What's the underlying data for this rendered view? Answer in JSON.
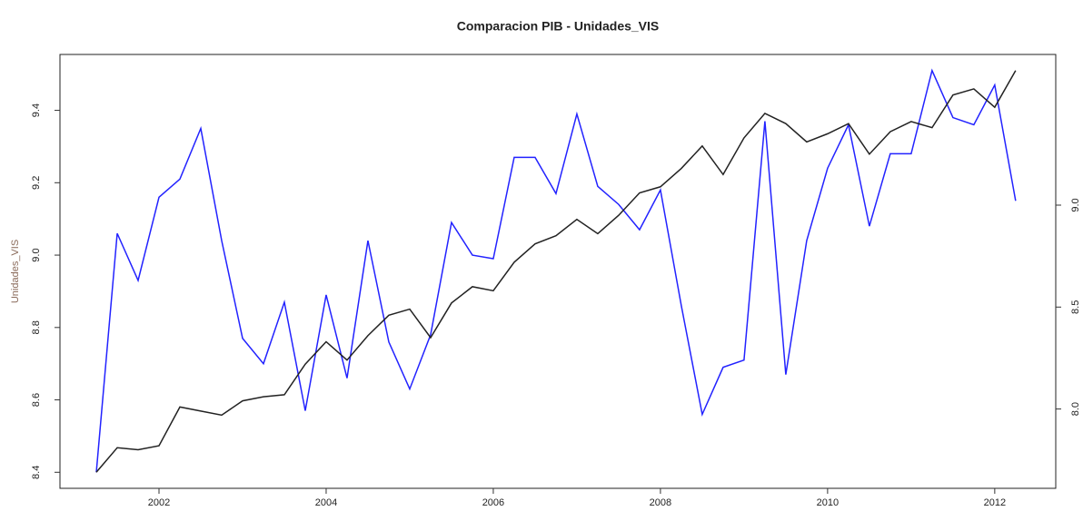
{
  "chart_data": {
    "type": "line",
    "title": "Comparacion PIB - Unidades_VIS",
    "ylabel": "Unidades_VIS",
    "x": [
      2001.25,
      2001.5,
      2001.75,
      2002,
      2002.25,
      2002.5,
      2002.75,
      2003,
      2003.25,
      2003.5,
      2003.75,
      2004,
      2004.25,
      2004.5,
      2004.75,
      2005,
      2005.25,
      2005.5,
      2005.75,
      2006,
      2006.25,
      2006.5,
      2006.75,
      2007,
      2007.25,
      2007.5,
      2007.75,
      2008,
      2008.25,
      2008.5,
      2008.75,
      2009,
      2009.25,
      2009.5,
      2009.75,
      2010,
      2010.25,
      2010.5,
      2010.75,
      2011,
      2011.25,
      2011.5,
      2011.75,
      2012,
      2012.25
    ],
    "series": [
      {
        "color": "#2222ff",
        "values": [
          8.4,
          9.06,
          8.93,
          9.16,
          9.21,
          9.35,
          9.04,
          8.77,
          8.7,
          8.87,
          8.57,
          8.89,
          8.66,
          9.04,
          8.76,
          8.63,
          8.78,
          9.09,
          9.0,
          8.99,
          9.27,
          9.27,
          9.17,
          9.39,
          9.19,
          9.14,
          9.07,
          9.18,
          8.86,
          8.56,
          8.69,
          8.71,
          9.37,
          8.67,
          9.04,
          9.24,
          9.36,
          9.08,
          9.28,
          9.28,
          9.51,
          9.38,
          9.36,
          9.47,
          9.15
        ]
      },
      {
        "color": "#222222",
        "axis": "y2",
        "values": [
          7.69,
          7.81,
          7.8,
          7.82,
          8.01,
          7.99,
          7.97,
          8.04,
          8.06,
          8.07,
          8.22,
          8.33,
          8.24,
          8.36,
          8.46,
          8.49,
          8.35,
          8.52,
          8.6,
          8.58,
          8.72,
          8.81,
          8.85,
          8.93,
          8.86,
          8.95,
          9.06,
          9.09,
          9.18,
          9.29,
          9.15,
          9.33,
          9.45,
          9.4,
          9.31,
          9.35,
          9.4,
          9.25,
          9.36,
          9.41,
          9.38,
          9.54,
          9.57,
          9.48,
          9.66
        ]
      }
    ],
    "xlim": [
      2000.815,
      2012.73
    ],
    "xticks": [
      2002,
      2004,
      2006,
      2008,
      2010,
      2012
    ],
    "ylim": [
      8.3556,
      9.5544
    ],
    "yticks": [
      8.4,
      8.6,
      8.8,
      {
        "value": 9,
        "label": "9.0"
      },
      9.2,
      9.4
    ],
    "y2lim": [
      7.611,
      9.739
    ],
    "y2ticks": [
      {
        "value": 8,
        "label": "8.0"
      },
      8.5,
      {
        "value": 9,
        "label": "9.0"
      }
    ]
  }
}
